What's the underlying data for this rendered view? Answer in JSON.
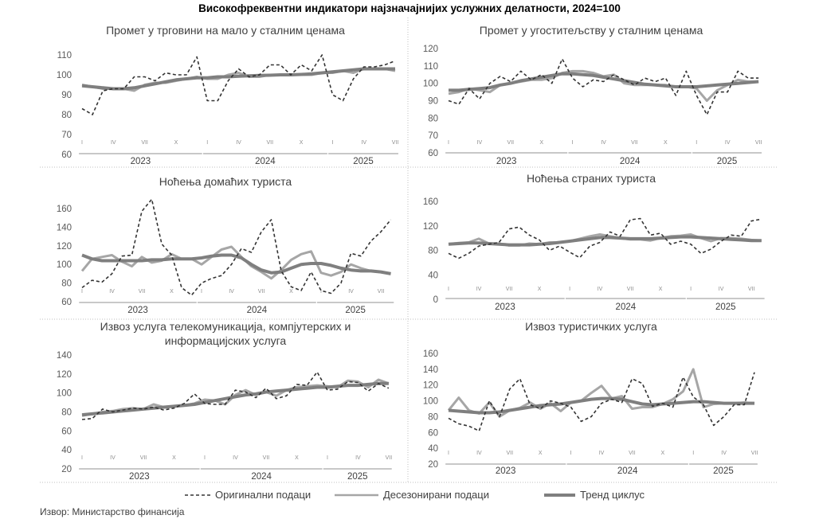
{
  "title": "Високофреквентни индикатори најзначајнијих услужних делатности, 2024=100",
  "legend": {
    "original": "Оригинални подаци",
    "seasonally_adjusted": "Десезонирани подаци",
    "trend": "Тренд циклус"
  },
  "source": "Извор: Министарство финансија",
  "colors": {
    "original": "#333333",
    "seasonally_adjusted": "#a6a6a6",
    "trend": "#7f7f7f"
  },
  "chart_data": [
    {
      "type": "line",
      "title": "Промет у трговини на мало у сталним ценама",
      "xlabel": "",
      "ylabel": "",
      "month_labels": [
        "I",
        "IV",
        "VII",
        "X",
        "I",
        "IV",
        "VII",
        "X",
        "I",
        "IV",
        "VII"
      ],
      "years": [
        "2023",
        "2024",
        "2025"
      ],
      "ylim": [
        60,
        110
      ],
      "yticks": [
        "60",
        "70",
        "80",
        "90",
        "100",
        "110"
      ],
      "series": [
        {
          "name": "Оригинални подаци",
          "values": [
            83,
            80,
            92,
            93,
            93,
            99,
            99,
            97,
            101,
            100,
            100,
            109,
            87,
            87,
            97,
            103,
            99,
            100,
            105,
            105,
            100,
            105,
            102,
            110,
            90,
            87,
            98,
            104,
            104,
            105,
            107
          ]
        },
        {
          "name": "Десезонирани подаци",
          "values": [
            95,
            94,
            93,
            93,
            93,
            92,
            95,
            96,
            96,
            97,
            98,
            99,
            98,
            98,
            100,
            101,
            99,
            99,
            100,
            100,
            100,
            100,
            100,
            101,
            101,
            102,
            101,
            103,
            103,
            103,
            102
          ]
        },
        {
          "name": "Тренд циклус",
          "values": [
            94.5,
            94,
            93.5,
            93,
            93,
            93.5,
            94.5,
            95.5,
            96.5,
            97.5,
            98,
            98.5,
            98.5,
            99,
            99,
            99.3,
            99.5,
            99.7,
            99.8,
            100,
            100,
            100.2,
            100.5,
            101,
            101.5,
            102,
            102.5,
            103,
            103,
            103,
            103
          ]
        }
      ]
    },
    {
      "type": "line",
      "title": "Промет у угоститељству у сталним ценама",
      "xlabel": "",
      "ylabel": "",
      "month_labels": [
        "I",
        "IV",
        "VII",
        "X",
        "I",
        "IV",
        "VII",
        "X",
        "I",
        "IV",
        "VII"
      ],
      "years": [
        "2023",
        "2024",
        "2025"
      ],
      "ylim": [
        60,
        120
      ],
      "yticks": [
        "60",
        "70",
        "80",
        "90",
        "100",
        "110",
        "120"
      ],
      "series": [
        {
          "name": "Оригинални подаци",
          "values": [
            90,
            88,
            97,
            91,
            100,
            104,
            101,
            107,
            102,
            105,
            100,
            114,
            103,
            98,
            102,
            101,
            105,
            102,
            99,
            103,
            101,
            103,
            93,
            107,
            93,
            82,
            95,
            95,
            107,
            103,
            103
          ]
        },
        {
          "name": "Десезонирани подаци",
          "values": [
            94,
            95,
            97,
            96,
            95,
            99,
            100,
            101,
            102,
            102,
            103,
            106,
            107,
            107,
            106,
            104,
            105,
            100,
            99,
            99,
            99,
            99,
            98,
            98,
            97,
            90,
            96,
            99,
            102,
            101,
            101
          ]
        },
        {
          "name": "Тренд циклус",
          "values": [
            96,
            96,
            96.5,
            97,
            97.5,
            99,
            100,
            101.5,
            102.5,
            103.5,
            104.5,
            105.5,
            105.5,
            105,
            104.5,
            103.5,
            102.5,
            101.5,
            100.5,
            99.5,
            99,
            98.5,
            98,
            98,
            98,
            98.5,
            99,
            99.5,
            100,
            100.5,
            101
          ]
        }
      ]
    },
    {
      "type": "line",
      "title": "Ноћења домаћих туриста",
      "xlabel": "",
      "ylabel": "",
      "month_labels": [
        "I",
        "IV",
        "VII",
        "X",
        "I",
        "IV",
        "VII",
        "X",
        "I",
        "IV",
        "VII"
      ],
      "years": [
        "2023",
        "2024",
        "2025"
      ],
      "ylim": [
        60,
        160
      ],
      "yticks": [
        "60",
        "80",
        "100",
        "120",
        "140",
        "160"
      ],
      "series": [
        {
          "name": "Оригинални подаци",
          "values": [
            75,
            83,
            81,
            90,
            109,
            110,
            157,
            170,
            122,
            110,
            75,
            67,
            80,
            85,
            88,
            100,
            117,
            113,
            135,
            148,
            93,
            76,
            72,
            92,
            72,
            69,
            80,
            112,
            109,
            125,
            135,
            148
          ]
        },
        {
          "name": "Десезонирани подаци",
          "values": [
            93,
            106,
            108,
            110,
            103,
            98,
            108,
            102,
            104,
            111,
            106,
            106,
            100,
            108,
            116,
            119,
            108,
            98,
            92,
            85,
            94,
            105,
            111,
            114,
            91,
            88,
            92,
            100,
            96,
            93,
            92,
            90
          ]
        },
        {
          "name": "Тренд циклус",
          "values": [
            110,
            106,
            104,
            104,
            104,
            104,
            104,
            105,
            105,
            106,
            106,
            106,
            107,
            109,
            110,
            110,
            107,
            100,
            94,
            91,
            92,
            96,
            100,
            101,
            101,
            99,
            96,
            94,
            93,
            93,
            92,
            90
          ]
        }
      ]
    },
    {
      "type": "line",
      "title": "Ноћења страних туриста",
      "xlabel": "",
      "ylabel": "",
      "month_labels": [
        "I",
        "IV",
        "VII",
        "X",
        "I",
        "IV",
        "VII",
        "X",
        "I",
        "IV",
        "VII"
      ],
      "years": [
        "2023",
        "2024",
        "2025"
      ],
      "ylim": [
        0,
        160
      ],
      "yticks": [
        "0",
        "40",
        "80",
        "120",
        "160"
      ],
      "series": [
        {
          "name": "Оригинални подаци",
          "values": [
            75,
            67,
            75,
            87,
            90,
            93,
            115,
            118,
            105,
            97,
            80,
            87,
            77,
            68,
            87,
            93,
            110,
            103,
            130,
            132,
            105,
            108,
            90,
            95,
            90,
            75,
            82,
            95,
            105,
            103,
            128,
            131
          ]
        },
        {
          "name": "Десезонирани подаци",
          "values": [
            90,
            92,
            93,
            99,
            91,
            91,
            88,
            88,
            91,
            90,
            93,
            93,
            95,
            99,
            103,
            106,
            103,
            100,
            98,
            98,
            96,
            100,
            103,
            104,
            106,
            100,
            95,
            100,
            100,
            99,
            97,
            96
          ]
        },
        {
          "name": "Тренд циклус",
          "values": [
            90,
            91,
            92,
            92,
            91,
            90,
            89,
            89,
            89,
            90,
            91,
            93,
            95,
            97,
            99,
            101,
            101,
            100,
            99,
            99,
            99,
            100,
            101,
            102,
            102,
            101,
            100,
            99,
            98,
            97,
            96,
            96
          ]
        }
      ]
    },
    {
      "type": "line",
      "title": "Извоз услуга телекомуникација, компјутерских и информацијских услуга",
      "title_lines": [
        "Извоз услуга телекомуникација, компјутерских и",
        "информацијских услуга"
      ],
      "xlabel": "",
      "ylabel": "",
      "month_labels": [
        "I",
        "IV",
        "VII",
        "X",
        "I",
        "IV",
        "VII",
        "X",
        "I",
        "IV",
        "VII"
      ],
      "years": [
        "2023",
        "2024",
        "2025"
      ],
      "ylim": [
        20,
        140
      ],
      "yticks": [
        "20",
        "40",
        "60",
        "80",
        "100",
        "120",
        "140"
      ],
      "series": [
        {
          "name": "Оригинални подаци",
          "values": [
            72,
            73,
            83,
            80,
            82,
            84,
            83,
            85,
            82,
            84,
            89,
            99,
            89,
            88,
            88,
            103,
            101,
            95,
            105,
            94,
            97,
            109,
            108,
            122,
            103,
            104,
            112,
            111,
            102,
            110,
            105
          ]
        },
        {
          "name": "Десезонирани подаци",
          "values": [
            76,
            78,
            80,
            81,
            83,
            84,
            83,
            88,
            85,
            86,
            87,
            89,
            93,
            92,
            88,
            98,
            103,
            98,
            101,
            97,
            103,
            106,
            107,
            108,
            107,
            106,
            113,
            112,
            106,
            114,
            110
          ]
        },
        {
          "name": "Тренд циклус",
          "values": [
            77,
            78,
            79,
            80,
            81,
            82,
            83,
            84,
            85,
            86,
            87,
            88,
            90,
            92,
            94,
            96,
            98,
            99,
            101,
            102,
            103,
            104,
            105,
            106,
            106,
            107,
            108,
            108,
            109,
            110,
            110
          ]
        }
      ]
    },
    {
      "type": "line",
      "title": "Извоз туристичких услуга",
      "xlabel": "",
      "ylabel": "",
      "month_labels": [
        "I",
        "IV",
        "VII",
        "X",
        "I",
        "IV",
        "VII",
        "X",
        "I",
        "IV",
        "VII"
      ],
      "years": [
        "2023",
        "2024",
        "2025"
      ],
      "ylim": [
        20,
        160
      ],
      "yticks": [
        "20",
        "40",
        "60",
        "80",
        "100",
        "120",
        "140",
        "160"
      ],
      "series": [
        {
          "name": "Оригинални подаци",
          "values": [
            78,
            71,
            68,
            62,
            100,
            80,
            115,
            128,
            95,
            90,
            100,
            97,
            92,
            74,
            80,
            97,
            102,
            98,
            128,
            122,
            93,
            97,
            92,
            130,
            105,
            95,
            69,
            80,
            95,
            95,
            136
          ]
        },
        {
          "name": "Десезонирани подаци",
          "values": [
            88,
            104,
            88,
            84,
            98,
            80,
            88,
            91,
            98,
            90,
            97,
            87,
            98,
            100,
            110,
            119,
            103,
            106,
            90,
            92,
            92,
            96,
            102,
            112,
            140,
            92,
            96,
            97,
            97,
            98,
            97
          ]
        },
        {
          "name": "Тренд циклус",
          "values": [
            88,
            87,
            86,
            85,
            85,
            86,
            88,
            90,
            92,
            94,
            95,
            96,
            98,
            100,
            102,
            103,
            103,
            102,
            99,
            96,
            95,
            96,
            97,
            98,
            99,
            99,
            98,
            97,
            97,
            97,
            97
          ]
        }
      ]
    }
  ]
}
